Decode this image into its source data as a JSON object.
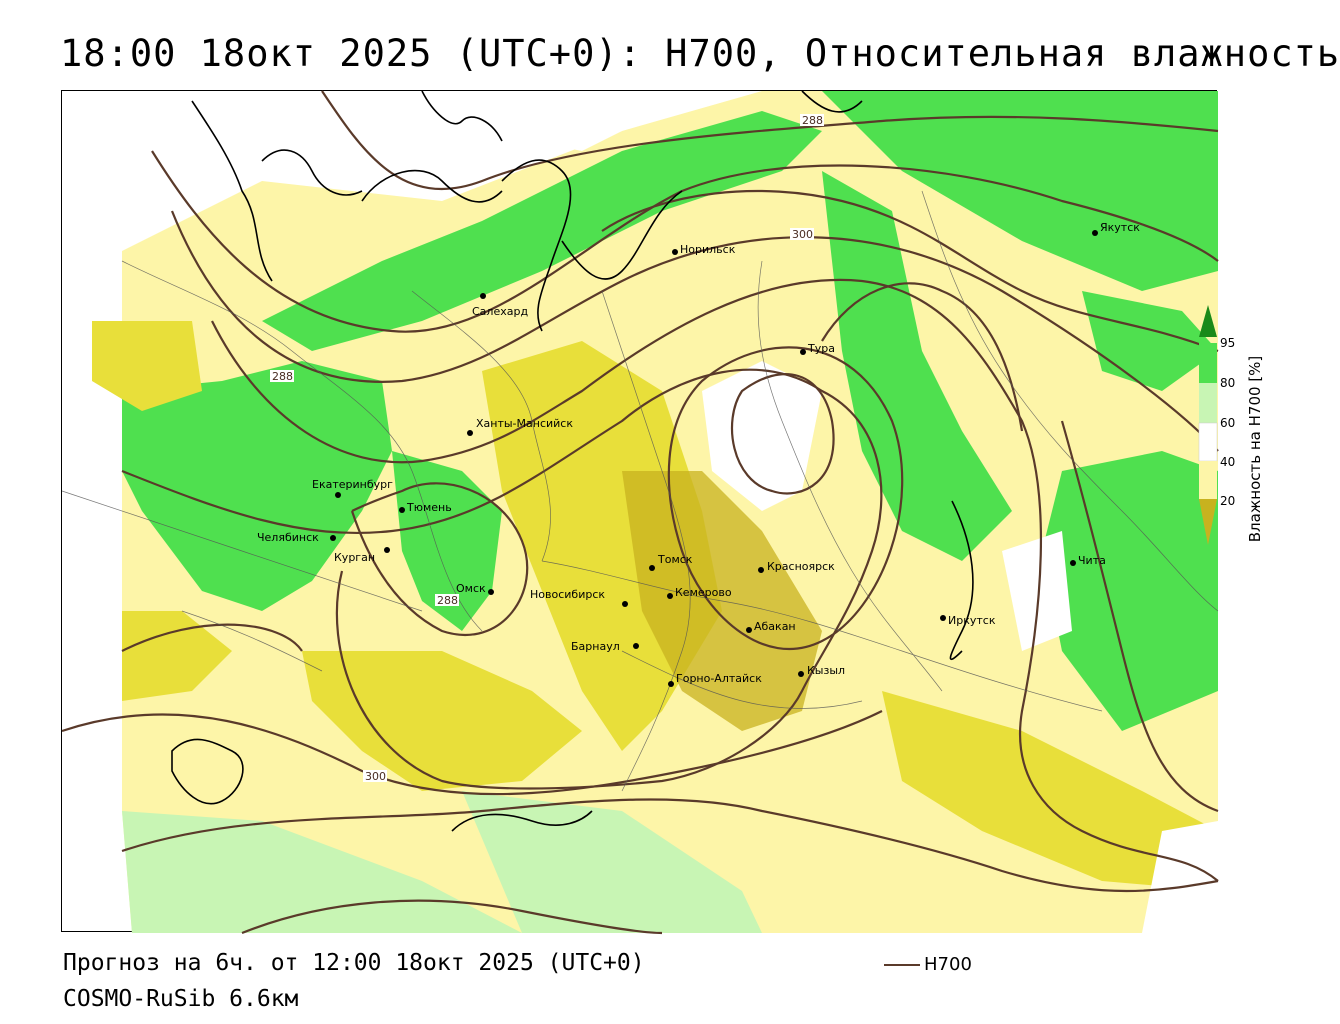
{
  "title": "18:00 18окт 2025 (UTC+0): H700, Относительная влажность",
  "footer": {
    "forecast": "Прогноз на 6ч. от 12:00 18окт 2025 (UTC+0)",
    "model": "COSMO-RuSib 6.6км"
  },
  "legend": {
    "line_label": "H700",
    "line_color": "#5a3a2a"
  },
  "colorbar": {
    "title": "Влажность на H700 [%]",
    "ticks": [
      "95",
      "80",
      "60",
      "40",
      "20"
    ],
    "colors": {
      "dark_green": "#1a8a1a",
      "green": "#4fe04f",
      "light_green": "#c8f5b4",
      "white": "#ffffff",
      "light_yellow": "#fdf5a8",
      "yellow": "#e8df3a",
      "dark_yellow": "#c8b21f"
    }
  },
  "cities": [
    {
      "name": "Норильск"
    },
    {
      "name": "Салехард"
    },
    {
      "name": "Якутск"
    },
    {
      "name": "Тура"
    },
    {
      "name": "Ханты-Мансийск"
    },
    {
      "name": "Екатеринбург"
    },
    {
      "name": "Тюмень"
    },
    {
      "name": "Челябинск"
    },
    {
      "name": "Курган"
    },
    {
      "name": "Омск"
    },
    {
      "name": "Новосибирск"
    },
    {
      "name": "Томск"
    },
    {
      "name": "Кемерово"
    },
    {
      "name": "Красноярск"
    },
    {
      "name": "Барнаул"
    },
    {
      "name": "Абакан"
    },
    {
      "name": "Горно-Алтайск"
    },
    {
      "name": "Кызыл"
    },
    {
      "name": "Иркутск"
    },
    {
      "name": "Чита"
    }
  ],
  "contour_labels": [
    "288",
    "300",
    "288",
    "288",
    "300"
  ]
}
